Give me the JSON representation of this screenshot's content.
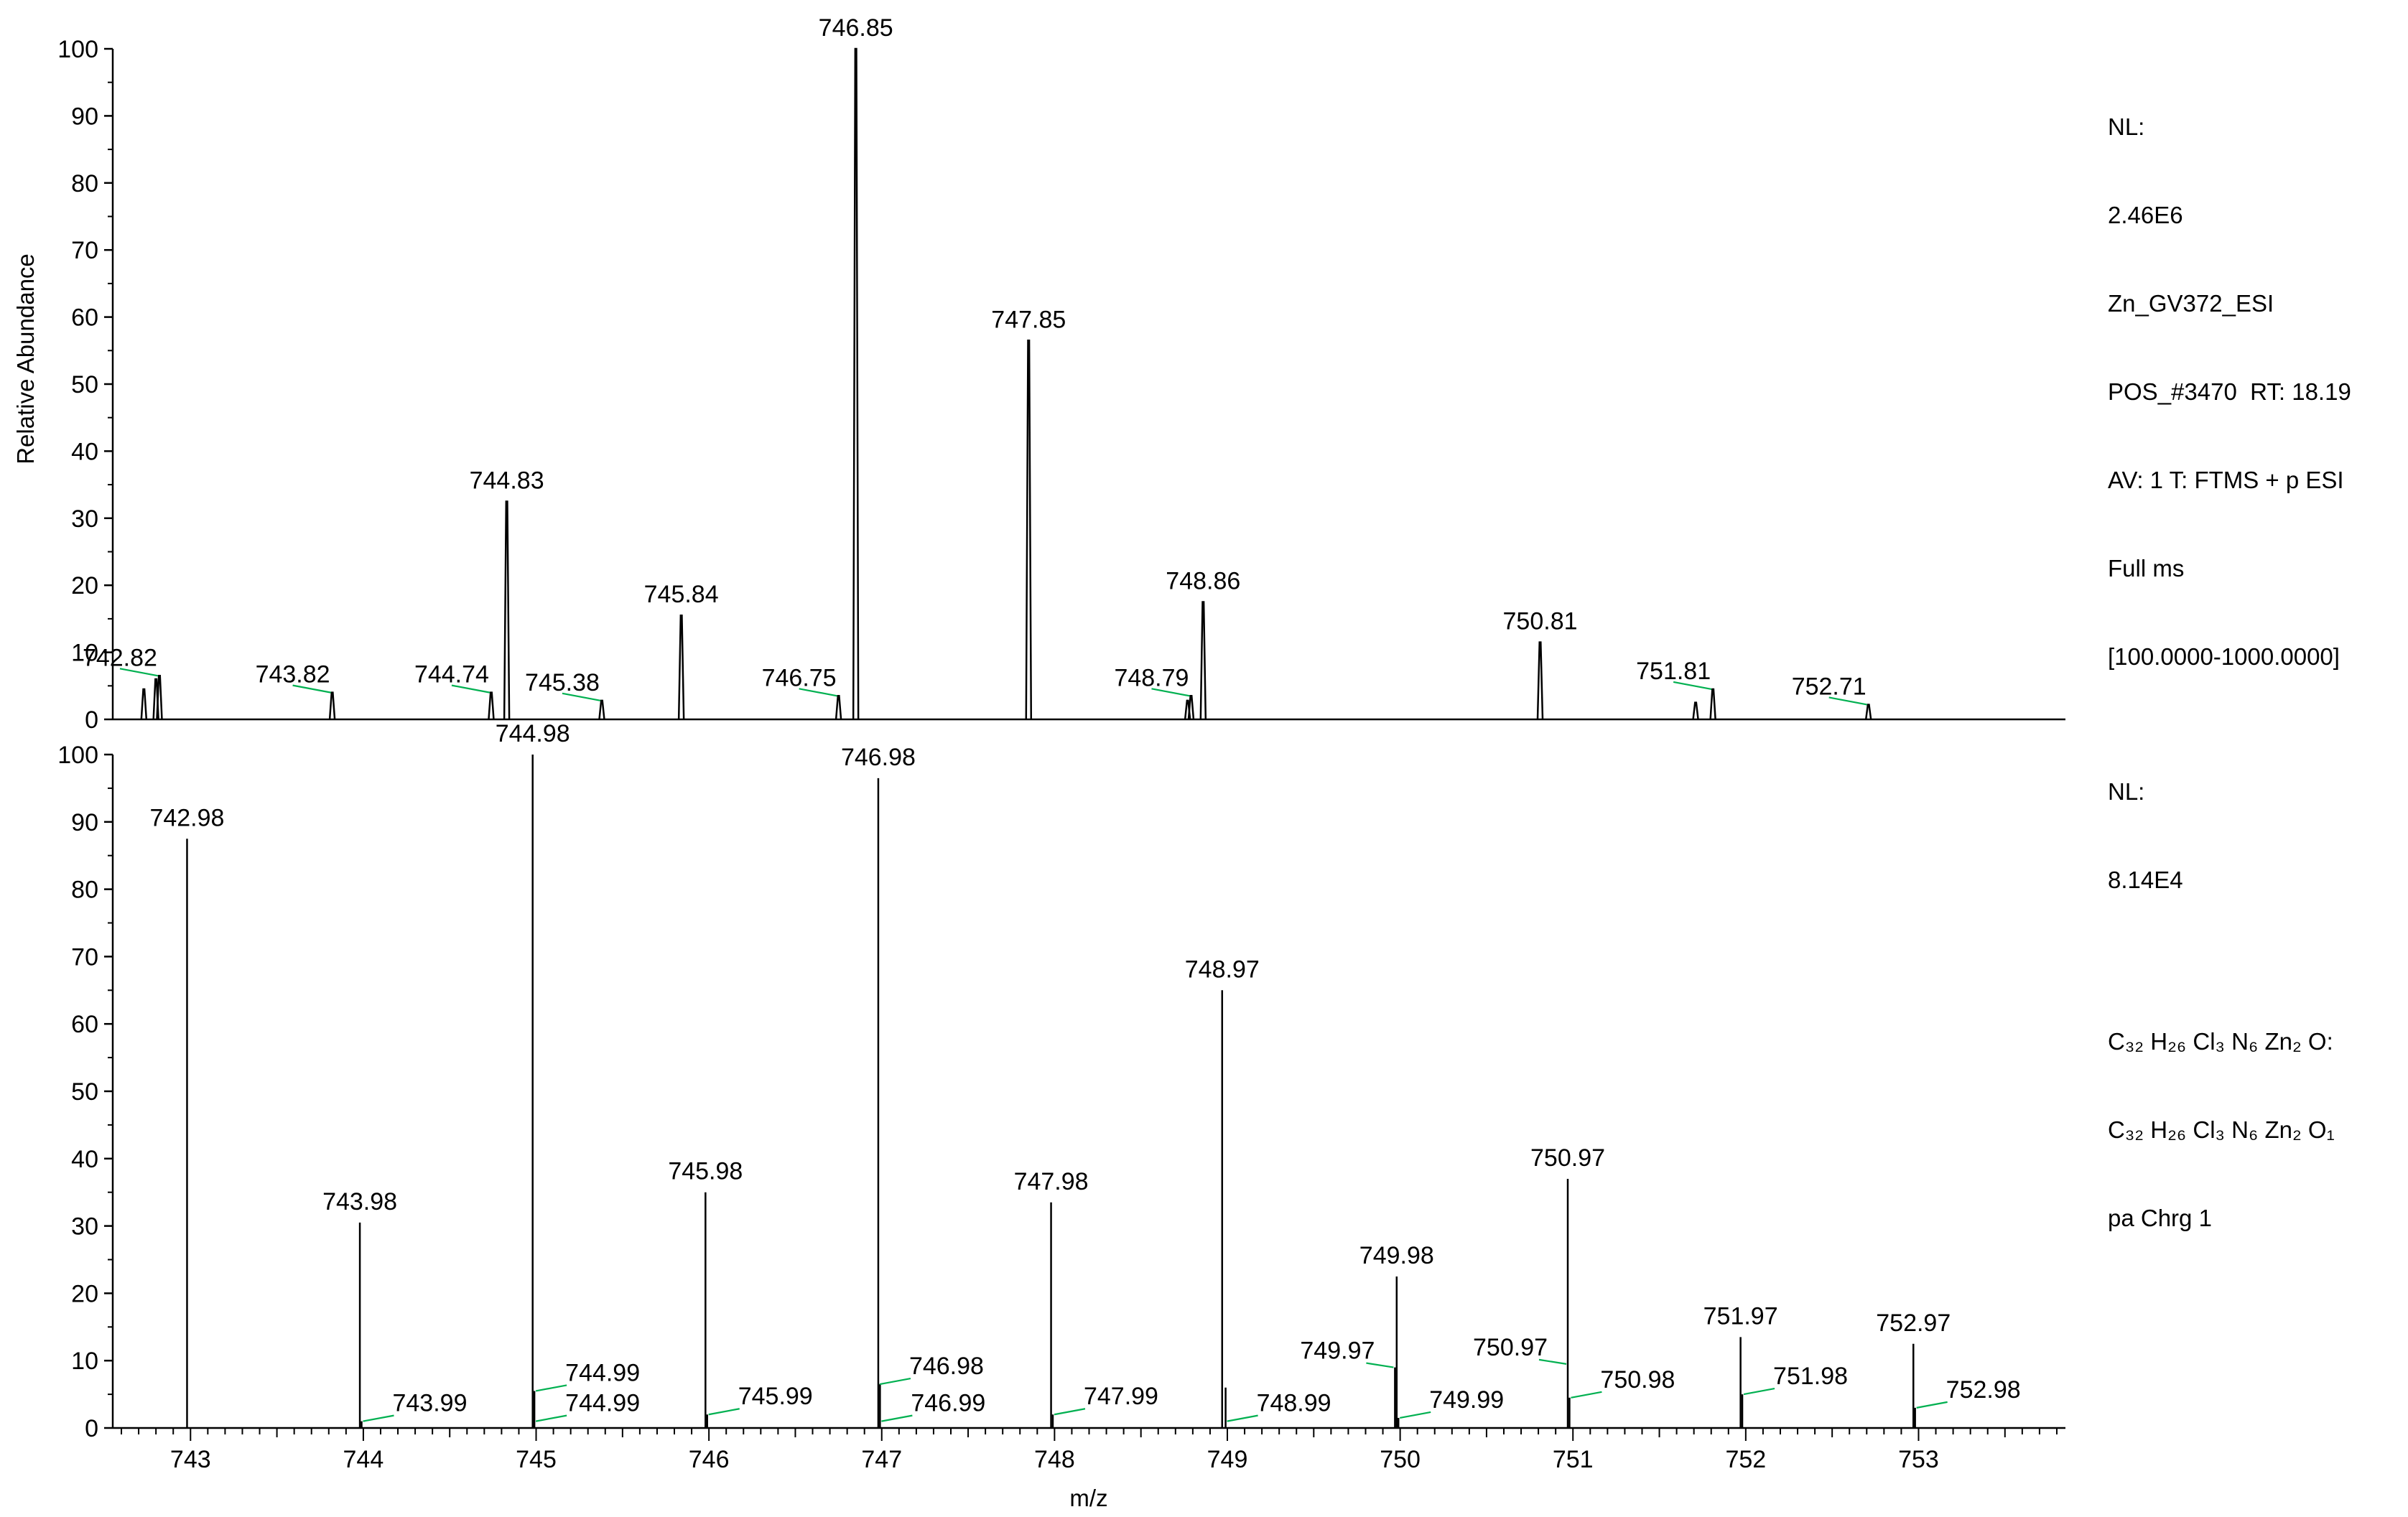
{
  "chart_data": [
    {
      "type": "line",
      "panel": "top",
      "title": "",
      "xlabel": "m/z",
      "ylabel": "Relative Abundance",
      "xlim": [
        742.55,
        753.85
      ],
      "ylim": [
        0,
        100
      ],
      "y_ticks": [
        "0",
        "10",
        "20",
        "30",
        "40",
        "50",
        "60",
        "70",
        "80",
        "90",
        "100"
      ],
      "grid": false,
      "info_lines": [
        "NL:",
        "2.46E6",
        "Zn_GV372_ESI",
        "POS_#3470  RT: 18.19",
        "AV: 1 T: FTMS + p ESI",
        "Full ms",
        "[100.0000-1000.0000]"
      ],
      "peaks": [
        {
          "x": 742.73,
          "y": 4.5
        },
        {
          "x": 742.8,
          "y": 6.0
        },
        {
          "x": 742.82,
          "y": 6.5
        },
        {
          "x": 743.82,
          "y": 4.0
        },
        {
          "x": 744.74,
          "y": 4.0
        },
        {
          "x": 744.83,
          "y": 32.5
        },
        {
          "x": 745.38,
          "y": 2.8
        },
        {
          "x": 745.84,
          "y": 15.5
        },
        {
          "x": 746.75,
          "y": 3.5
        },
        {
          "x": 746.85,
          "y": 100
        },
        {
          "x": 747.85,
          "y": 56.5
        },
        {
          "x": 748.77,
          "y": 2.8
        },
        {
          "x": 748.79,
          "y": 3.5
        },
        {
          "x": 748.86,
          "y": 17.5
        },
        {
          "x": 750.81,
          "y": 11.5
        },
        {
          "x": 751.71,
          "y": 2.5
        },
        {
          "x": 751.81,
          "y": 4.5
        },
        {
          "x": 752.71,
          "y": 2.2
        }
      ],
      "labels": [
        {
          "x": 742.82,
          "y": 6.5,
          "text": "742.82"
        },
        {
          "x": 743.82,
          "y": 4.0,
          "text": "743.82"
        },
        {
          "x": 744.74,
          "y": 4.0,
          "text": "744.74"
        },
        {
          "x": 744.83,
          "y": 32.5,
          "text": "744.83"
        },
        {
          "x": 745.38,
          "y": 2.8,
          "text": "745.38"
        },
        {
          "x": 745.84,
          "y": 15.5,
          "text": "745.84"
        },
        {
          "x": 746.75,
          "y": 3.5,
          "text": "746.75"
        },
        {
          "x": 746.85,
          "y": 100,
          "text": "746.85"
        },
        {
          "x": 747.85,
          "y": 56.5,
          "text": "747.85"
        },
        {
          "x": 748.79,
          "y": 3.5,
          "text": "748.79"
        },
        {
          "x": 748.86,
          "y": 17.5,
          "text": "748.86"
        },
        {
          "x": 750.81,
          "y": 11.5,
          "text": "750.81"
        },
        {
          "x": 751.81,
          "y": 4.5,
          "text": "751.81"
        },
        {
          "x": 752.71,
          "y": 2.2,
          "text": "752.71"
        }
      ]
    },
    {
      "type": "bar",
      "panel": "bottom",
      "title": "",
      "xlabel": "m/z",
      "ylabel": "Relative Abundance",
      "xlim": [
        742.55,
        753.85
      ],
      "ylim": [
        0,
        100
      ],
      "y_ticks": [
        "0",
        "10",
        "20",
        "30",
        "40",
        "50",
        "60",
        "70",
        "80",
        "90",
        "100"
      ],
      "x_ticks": [
        "743",
        "744",
        "745",
        "746",
        "747",
        "748",
        "749",
        "750",
        "751",
        "752",
        "753"
      ],
      "grid": false,
      "info_lines": [
        "NL:",
        "8.14E4"
      ],
      "formula_lines": [
        {
          "text": "C₃₂ H₂₆ Cl₃ N₆ Zn₂ O:"
        },
        {
          "text": "C₃₂ H₂₆ Cl₃ N₆ Zn₂ O₁"
        },
        {
          "text": "pa Chrg 1"
        }
      ],
      "peaks": [
        {
          "x": 742.98,
          "y": 87.5
        },
        {
          "x": 743.98,
          "y": 30.5
        },
        {
          "x": 743.99,
          "y": 1.0
        },
        {
          "x": 744.98,
          "y": 100
        },
        {
          "x": 744.99,
          "y": 5.5
        },
        {
          "x": 745.98,
          "y": 35
        },
        {
          "x": 745.99,
          "y": 2.0
        },
        {
          "x": 746.98,
          "y": 96.5
        },
        {
          "x": 746.99,
          "y": 6.5
        },
        {
          "x": 747.98,
          "y": 33.5
        },
        {
          "x": 747.99,
          "y": 2.0
        },
        {
          "x": 748.97,
          "y": 65
        },
        {
          "x": 748.99,
          "y": 6.0
        },
        {
          "x": 749.97,
          "y": 9.0
        },
        {
          "x": 749.98,
          "y": 22.5
        },
        {
          "x": 749.99,
          "y": 1.5
        },
        {
          "x": 750.97,
          "y": 37
        },
        {
          "x": 750.98,
          "y": 4.5
        },
        {
          "x": 751.97,
          "y": 13.5
        },
        {
          "x": 751.98,
          "y": 5.0
        },
        {
          "x": 752.97,
          "y": 12.5
        },
        {
          "x": 752.98,
          "y": 3.0
        }
      ],
      "labels": [
        {
          "x": 742.98,
          "y": 87.5,
          "text": "742.98"
        },
        {
          "x": 743.98,
          "y": 30.5,
          "text": "743.98"
        },
        {
          "x": 743.99,
          "y": 1.0,
          "text": "743.99"
        },
        {
          "x": 744.98,
          "y": 100,
          "text": "744.98"
        },
        {
          "x": 744.99,
          "y": 5.5,
          "text": "744.99"
        },
        {
          "x": 744.99,
          "y": 1.0,
          "text": "744.99"
        },
        {
          "x": 745.98,
          "y": 35,
          "text": "745.98"
        },
        {
          "x": 745.99,
          "y": 2.0,
          "text": "745.99"
        },
        {
          "x": 746.98,
          "y": 96.5,
          "text": "746.98"
        },
        {
          "x": 746.98,
          "y": 6.5,
          "text": "746.98"
        },
        {
          "x": 746.99,
          "y": 1.0,
          "text": "746.99"
        },
        {
          "x": 747.98,
          "y": 33.5,
          "text": "747.98"
        },
        {
          "x": 747.99,
          "y": 2.0,
          "text": "747.99"
        },
        {
          "x": 748.97,
          "y": 65,
          "text": "748.97"
        },
        {
          "x": 748.99,
          "y": 1.0,
          "text": "748.99"
        },
        {
          "x": 749.97,
          "y": 9.0,
          "text": "749.97"
        },
        {
          "x": 749.98,
          "y": 22.5,
          "text": "749.98"
        },
        {
          "x": 749.99,
          "y": 1.5,
          "text": "749.99"
        },
        {
          "x": 750.97,
          "y": 37,
          "text": "750.97"
        },
        {
          "x": 750.97,
          "y": 9.5,
          "text": "750.97"
        },
        {
          "x": 750.98,
          "y": 4.5,
          "text": "750.98"
        },
        {
          "x": 751.97,
          "y": 13.5,
          "text": "751.97"
        },
        {
          "x": 751.98,
          "y": 5.0,
          "text": "751.98"
        },
        {
          "x": 752.97,
          "y": 12.5,
          "text": "752.97"
        },
        {
          "x": 752.98,
          "y": 3.0,
          "text": "752.98"
        }
      ]
    }
  ],
  "colors": {
    "trace": "#000000",
    "leader": "#00b050",
    "axis": "#000000"
  }
}
